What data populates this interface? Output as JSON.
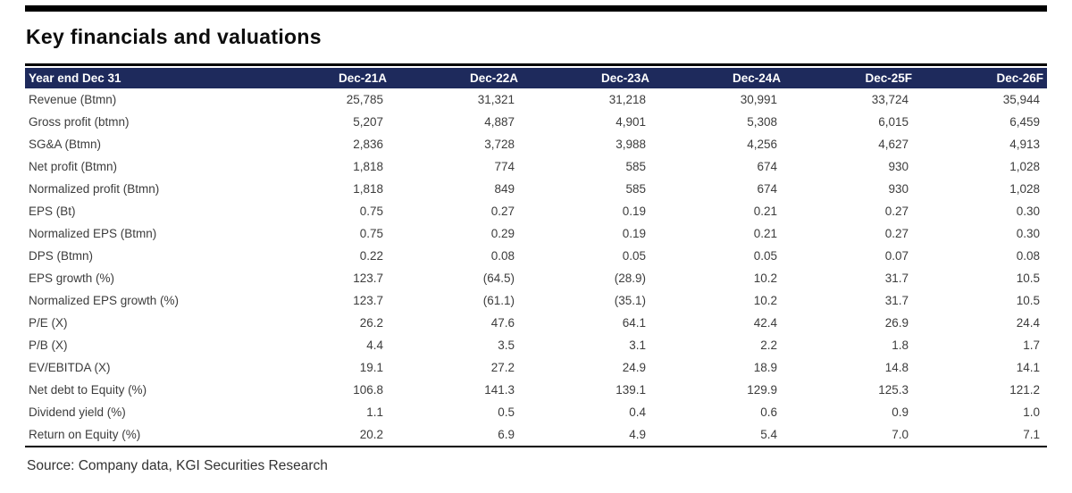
{
  "page": {
    "title": "Key financials and valuations",
    "source": "Source: Company data, KGI Securities Research"
  },
  "colors": {
    "header_bg": "#1e2a5c",
    "header_text": "#ffffff",
    "body_text": "#3c3c3c",
    "rule": "#000000"
  },
  "table": {
    "header": [
      "Year end Dec 31",
      "Dec-21A",
      "Dec-22A",
      "Dec-23A",
      "Dec-24A",
      "Dec-25F",
      "Dec-26F"
    ],
    "rows": [
      {
        "label": "Revenue (Btmn)",
        "values": [
          "25,785",
          "31,321",
          "31,218",
          "30,991",
          "33,724",
          "35,944"
        ]
      },
      {
        "label": "Gross profit (btmn)",
        "values": [
          "5,207",
          "4,887",
          "4,901",
          "5,308",
          "6,015",
          "6,459"
        ]
      },
      {
        "label": "SG&A (Btmn)",
        "values": [
          "2,836",
          "3,728",
          "3,988",
          "4,256",
          "4,627",
          "4,913"
        ]
      },
      {
        "label": "Net profit (Btmn)",
        "values": [
          "1,818",
          "774",
          "585",
          "674",
          "930",
          "1,028"
        ]
      },
      {
        "label": "Normalized profit (Btmn)",
        "values": [
          "1,818",
          "849",
          "585",
          "674",
          "930",
          "1,028"
        ]
      },
      {
        "label": "EPS (Bt)",
        "values": [
          "0.75",
          "0.27",
          "0.19",
          "0.21",
          "0.27",
          "0.30"
        ]
      },
      {
        "label": "Normalized EPS (Btmn)",
        "values": [
          "0.75",
          "0.29",
          "0.19",
          "0.21",
          "0.27",
          "0.30"
        ]
      },
      {
        "label": "DPS (Btmn)",
        "values": [
          "0.22",
          "0.08",
          "0.05",
          "0.05",
          "0.07",
          "0.08"
        ]
      },
      {
        "label": "EPS growth (%)",
        "values": [
          "123.7",
          "(64.5)",
          "(28.9)",
          "10.2",
          "31.7",
          "10.5"
        ]
      },
      {
        "label": "Normalized EPS growth (%)",
        "values": [
          "123.7",
          "(61.1)",
          "(35.1)",
          "10.2",
          "31.7",
          "10.5"
        ]
      },
      {
        "label": "P/E (X)",
        "values": [
          "26.2",
          "47.6",
          "64.1",
          "42.4",
          "26.9",
          "24.4"
        ]
      },
      {
        "label": "P/B (X)",
        "values": [
          "4.4",
          "3.5",
          "3.1",
          "2.2",
          "1.8",
          "1.7"
        ]
      },
      {
        "label": "EV/EBITDA (X)",
        "values": [
          "19.1",
          "27.2",
          "24.9",
          "18.9",
          "14.8",
          "14.1"
        ]
      },
      {
        "label": "Net debt to Equity (%)",
        "values": [
          "106.8",
          "141.3",
          "139.1",
          "129.9",
          "125.3",
          "121.2"
        ]
      },
      {
        "label": "Dividend yield (%)",
        "values": [
          "1.1",
          "0.5",
          "0.4",
          "0.6",
          "0.9",
          "1.0"
        ]
      },
      {
        "label": "Return on Equity (%)",
        "values": [
          "20.2",
          "6.9",
          "4.9",
          "5.4",
          "7.0",
          "7.1"
        ]
      }
    ]
  }
}
